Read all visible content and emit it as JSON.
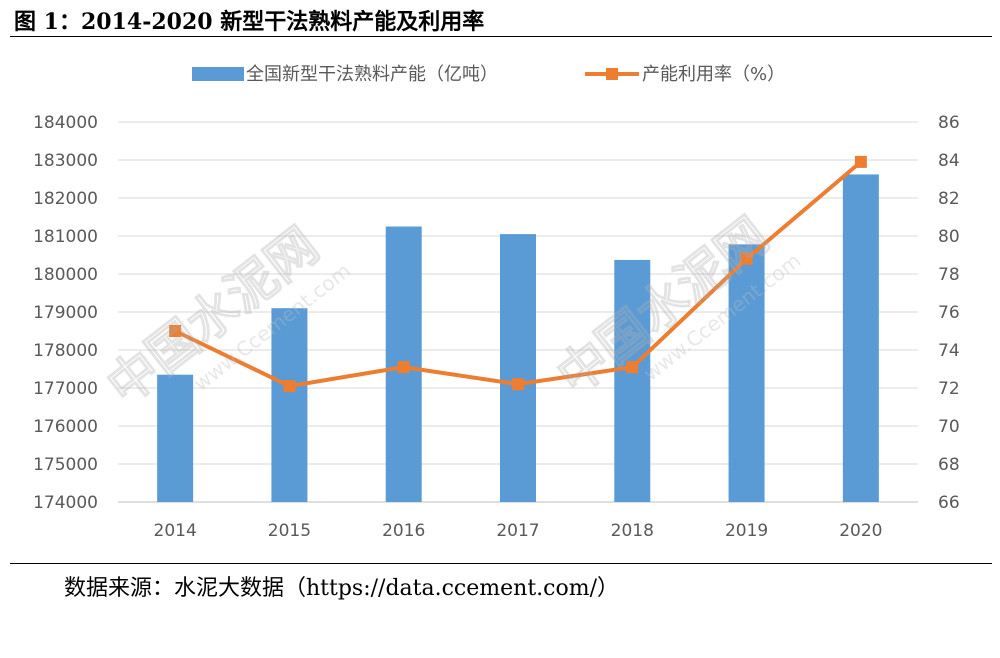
{
  "figure": {
    "title": "图 1：2014-2020 新型干法熟料产能及利用率",
    "source": "数据来源：水泥大数据（https://data.ccement.com/）"
  },
  "watermarks": [
    "中国水泥网",
    "www.Ccement.com"
  ],
  "colors": {
    "bar": "#5b9bd5",
    "line": "#ed7d31",
    "grid": "#d9d9d9",
    "axis_text": "#595959"
  },
  "chart_data": {
    "type": "bar",
    "categories": [
      "2014",
      "2015",
      "2016",
      "2017",
      "2018",
      "2019",
      "2020"
    ],
    "series": [
      {
        "name": "全国新型干法熟料产能（亿吨）",
        "type": "bar",
        "axis": "left",
        "values": [
          177350,
          179100,
          181250,
          181050,
          180370,
          180780,
          182620
        ]
      },
      {
        "name": "产能利用率（%）",
        "type": "line",
        "axis": "right",
        "values": [
          75.0,
          72.1,
          73.1,
          72.2,
          73.1,
          78.8,
          83.9
        ]
      }
    ],
    "y_left": {
      "min": 174000,
      "max": 184000,
      "step": 1000,
      "ticks": [
        "174000",
        "175000",
        "176000",
        "177000",
        "178000",
        "179000",
        "180000",
        "181000",
        "182000",
        "183000",
        "184000"
      ]
    },
    "y_right": {
      "min": 66,
      "max": 86,
      "step": 2,
      "ticks": [
        "66",
        "68",
        "70",
        "72",
        "74",
        "76",
        "78",
        "80",
        "82",
        "84",
        "86"
      ]
    },
    "grid": true,
    "legend": "top"
  }
}
